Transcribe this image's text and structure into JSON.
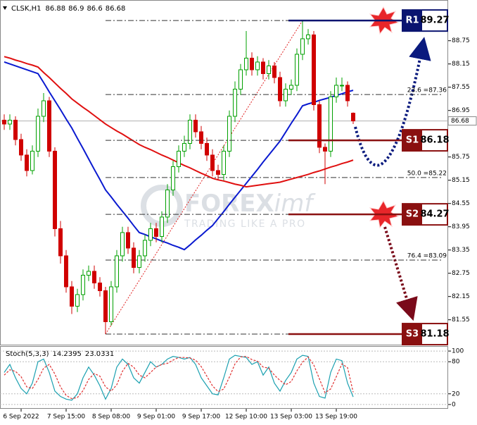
{
  "chart_data": [
    {
      "type": "candlestick",
      "symbol": "CLSK,H1",
      "watermark": [
        "FOREX",
        "imf",
        "TRADING LIKE A PRO"
      ],
      "categories": [
        null,
        null,
        null,
        "6 Sep 2022",
        null,
        null,
        null,
        null,
        null,
        null,
        null,
        "7 Sep 15:00",
        null,
        null,
        null,
        null,
        null,
        null,
        null,
        "8 Sep 08:00",
        null,
        null,
        null,
        null,
        null,
        null,
        null,
        "9 Sep 01:00",
        null,
        null,
        null,
        null,
        null,
        null,
        null,
        "9 Sep 17:00",
        null,
        null,
        null,
        null,
        null,
        null,
        null,
        "12 Sep 10:00",
        null,
        null,
        null,
        null,
        null,
        null,
        null,
        "13 Sep 03:00",
        null,
        null,
        null,
        null,
        null,
        null,
        null,
        "13 Sep 19:00",
        null,
        null,
        null
      ],
      "open": [
        86.7,
        86.6,
        86.7,
        86.2,
        85.8,
        85.4,
        85.9,
        86.8,
        87.2,
        85.9,
        83.9,
        83.2,
        82.4,
        81.9,
        82.2,
        82.7,
        82.8,
        82.5,
        82.3,
        81.5,
        82.4,
        83.2,
        83.8,
        83.4,
        82.9,
        83.2,
        83.6,
        83.9,
        83.7,
        84.2,
        84.9,
        85.5,
        85.9,
        86.1,
        86.7,
        86.4,
        86.1,
        85.8,
        85.4,
        85.3,
        85.9,
        86.8,
        87.5,
        88.0,
        88.3,
        88.0,
        88.2,
        87.9,
        88.1,
        87.8,
        87.2,
        87.5,
        87.6,
        88.4,
        88.8,
        88.9,
        87.1,
        86.0,
        85.9,
        87.3,
        87.6,
        87.6,
        86.88
      ],
      "high": [
        86.85,
        86.85,
        86.8,
        86.35,
        85.95,
        86.05,
        87.0,
        87.4,
        87.3,
        86.0,
        84.1,
        83.35,
        82.55,
        82.35,
        82.85,
        82.95,
        82.95,
        82.65,
        82.4,
        82.55,
        83.35,
        83.95,
        83.95,
        83.55,
        83.35,
        83.75,
        84.05,
        84.05,
        84.35,
        85.05,
        85.65,
        86.05,
        86.3,
        86.85,
        86.85,
        86.55,
        86.25,
        85.95,
        85.55,
        86.05,
        86.95,
        87.7,
        88.15,
        89.0,
        88.45,
        88.35,
        88.3,
        88.25,
        88.2,
        87.95,
        87.65,
        87.75,
        88.55,
        89.27,
        89.05,
        89.0,
        87.2,
        86.1,
        87.45,
        87.8,
        87.8,
        87.7,
        86.9
      ],
      "low": [
        86.45,
        86.45,
        86.05,
        85.65,
        85.25,
        85.3,
        85.75,
        86.65,
        85.75,
        83.7,
        83.0,
        82.25,
        81.7,
        81.75,
        82.05,
        82.55,
        82.35,
        82.15,
        81.18,
        81.4,
        82.25,
        83.05,
        83.25,
        82.75,
        82.75,
        83.05,
        83.45,
        83.55,
        83.55,
        84.05,
        84.75,
        85.35,
        85.75,
        85.95,
        86.25,
        85.95,
        85.65,
        85.25,
        85.15,
        85.15,
        85.75,
        86.65,
        87.35,
        87.85,
        87.85,
        87.85,
        87.75,
        87.75,
        87.65,
        87.05,
        87.05,
        87.35,
        87.45,
        88.25,
        88.65,
        86.95,
        85.85,
        85.05,
        85.75,
        87.15,
        87.45,
        87.05,
        86.6
      ],
      "close": [
        86.6,
        86.7,
        86.2,
        85.8,
        85.4,
        85.9,
        86.8,
        87.2,
        85.9,
        83.9,
        83.2,
        82.4,
        81.9,
        82.2,
        82.7,
        82.8,
        82.5,
        82.3,
        81.5,
        82.4,
        83.2,
        83.8,
        83.4,
        82.9,
        83.2,
        83.6,
        83.9,
        83.7,
        84.2,
        84.9,
        85.5,
        85.9,
        86.1,
        86.7,
        86.4,
        86.1,
        85.8,
        85.4,
        85.3,
        85.9,
        86.8,
        87.5,
        88.0,
        88.3,
        88.0,
        88.2,
        87.9,
        88.1,
        87.8,
        87.2,
        87.5,
        87.6,
        88.4,
        88.8,
        88.9,
        87.1,
        86.0,
        85.9,
        87.3,
        87.6,
        87.6,
        87.2,
        86.68
      ],
      "up_color": "#00a000",
      "down_color": "#d00000",
      "ylim": [
        80.89,
        89.8
      ],
      "yticks": [
        88.75,
        88.15,
        87.55,
        86.95,
        85.75,
        85.15,
        84.55,
        83.95,
        83.35,
        82.75,
        82.15,
        81.55
      ],
      "moving_averages": [
        {
          "color": "#0a1ad0",
          "values": [
            88.2,
            88.15,
            88.1,
            88.05,
            88.0,
            87.95,
            87.9,
            87.67,
            87.43,
            87.2,
            86.97,
            86.73,
            86.5,
            86.23,
            85.97,
            85.7,
            85.43,
            85.17,
            84.9,
            84.72,
            84.53,
            84.35,
            84.17,
            83.98,
            83.8,
            83.75,
            83.69,
            83.64,
            83.58,
            83.53,
            83.47,
            83.42,
            83.36,
            83.48,
            83.61,
            83.73,
            83.86,
            83.98,
            84.16,
            84.34,
            84.53,
            84.71,
            84.89,
            85.07,
            85.25,
            85.43,
            85.62,
            85.8,
            85.98,
            86.16,
            86.39,
            86.62,
            86.84,
            87.07,
            87.12,
            87.16,
            87.21,
            87.25,
            87.29,
            87.34,
            87.38,
            87.43,
            87.47
          ]
        },
        {
          "color": "#e01010",
          "values": [
            88.34,
            88.3,
            88.25,
            88.21,
            88.16,
            88.12,
            88.07,
            87.93,
            87.8,
            87.66,
            87.52,
            87.39,
            87.25,
            87.14,
            87.03,
            86.93,
            86.82,
            86.71,
            86.6,
            86.51,
            86.42,
            86.34,
            86.25,
            86.16,
            86.07,
            86.0,
            85.94,
            85.87,
            85.8,
            85.74,
            85.67,
            85.6,
            85.53,
            85.47,
            85.4,
            85.33,
            85.27,
            85.2,
            85.16,
            85.13,
            85.09,
            85.05,
            85.02,
            84.98,
            85.0,
            85.02,
            85.04,
            85.06,
            85.08,
            85.1,
            85.14,
            85.18,
            85.22,
            85.26,
            85.3,
            85.35,
            85.39,
            85.44,
            85.49,
            85.53,
            85.58,
            85.62,
            85.67
          ]
        }
      ],
      "levels": [
        {
          "name": "R1",
          "value": 89.27,
          "color": "#0a1470"
        },
        {
          "name": "S1",
          "value": 86.18,
          "color": "#8a1010"
        },
        {
          "name": "S2",
          "value": 84.27,
          "color": "#8a1010"
        },
        {
          "name": "S3",
          "value": 81.18,
          "color": "#8a1010"
        }
      ],
      "fib_levels": [
        {
          "label": "23.6 =87.36",
          "value": 87.36
        },
        {
          "label": "50.0 =85.22",
          "value": 85.22
        },
        {
          "label": "76.4 =83.09",
          "value": 83.09
        }
      ]
    },
    {
      "type": "line",
      "title": "Stoch(5,3,3)",
      "ylim": [
        -8,
        108
      ],
      "yticks": [
        100,
        80,
        20,
        0
      ],
      "series": [
        {
          "color": "#1aa0b0",
          "values": [
            60,
            75,
            50,
            30,
            20,
            40,
            80,
            85,
            60,
            25,
            15,
            10,
            8,
            20,
            50,
            70,
            55,
            35,
            10,
            30,
            70,
            85,
            75,
            50,
            40,
            60,
            80,
            70,
            75,
            85,
            90,
            88,
            85,
            88,
            75,
            50,
            35,
            20,
            18,
            50,
            85,
            92,
            90,
            88,
            75,
            80,
            55,
            70,
            40,
            25,
            45,
            60,
            85,
            92,
            90,
            40,
            15,
            12,
            60,
            85,
            82,
            40,
            14.2395
          ]
        },
        {
          "color": "#e03030",
          "dashed": true,
          "values": [
            55,
            65,
            62,
            52,
            33,
            30,
            47,
            68,
            75,
            57,
            33,
            17,
            11,
            13,
            26,
            47,
            58,
            53,
            33,
            25,
            37,
            62,
            77,
            70,
            55,
            50,
            60,
            70,
            75,
            77,
            83,
            88,
            88,
            87,
            83,
            71,
            53,
            35,
            24,
            29,
            51,
            76,
            89,
            90,
            84,
            81,
            70,
            68,
            55,
            45,
            37,
            43,
            63,
            79,
            89,
            74,
            48,
            22,
            29,
            52,
            76,
            69,
            23.0331
          ]
        }
      ]
    }
  ]
}
